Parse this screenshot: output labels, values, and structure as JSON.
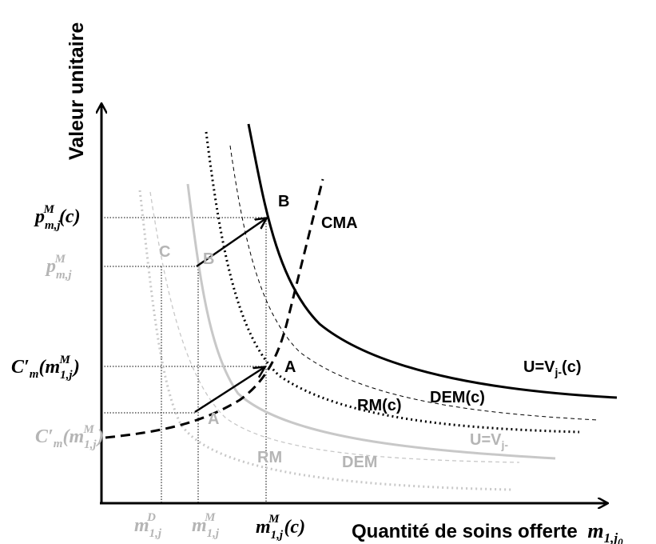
{
  "axes": {
    "y_title": "Valeur unitaire",
    "x_title": "Quantité de soins offerte",
    "x_symbol": {
      "base": "m",
      "sub": "1,j",
      "subsub": "0"
    }
  },
  "y_ticks": {
    "p_c": {
      "base": "p",
      "sub": "m,j",
      "sup": "M",
      "tail": "(c)"
    },
    "p": {
      "base": "p",
      "sub": "m,j",
      "sup": "M"
    },
    "cm_c": {
      "head": "C",
      "prime": "′",
      "sub": "m",
      "open": "(",
      "base": "m",
      "inner_sub": "1,j",
      "inner_sup": "M",
      "close": ")"
    },
    "cm": {
      "head": "C",
      "prime": "′",
      "sub": "m",
      "open": "(",
      "base": "m",
      "inner_sub": "1,j",
      "inner_sup": "M",
      "close": ")"
    }
  },
  "x_ticks": {
    "mD": {
      "base": "m",
      "sub": "1,j",
      "sup": "D"
    },
    "mM": {
      "base": "m",
      "sub": "1,j",
      "sup": "M"
    },
    "mM_c": {
      "base": "m",
      "sub": "1,j",
      "sup": "M",
      "tail": "(c)"
    }
  },
  "curve_labels": {
    "cma": "CMA",
    "u_c": "U=V",
    "u_c_sub": "j-",
    "u_c_tail": "(c)",
    "u": "U=V",
    "u_sub": "j-",
    "dem_c": "DEM(c)",
    "rm_c": "RM(c)",
    "rm": "RM",
    "dem": "DEM"
  },
  "points": {
    "b_c": "B",
    "a_c": "A",
    "b": "B",
    "a": "A",
    "c": "C"
  },
  "colors": {
    "black": "#000000",
    "gray": "#b5b5b5",
    "light_gray": "#c8c8c8"
  }
}
